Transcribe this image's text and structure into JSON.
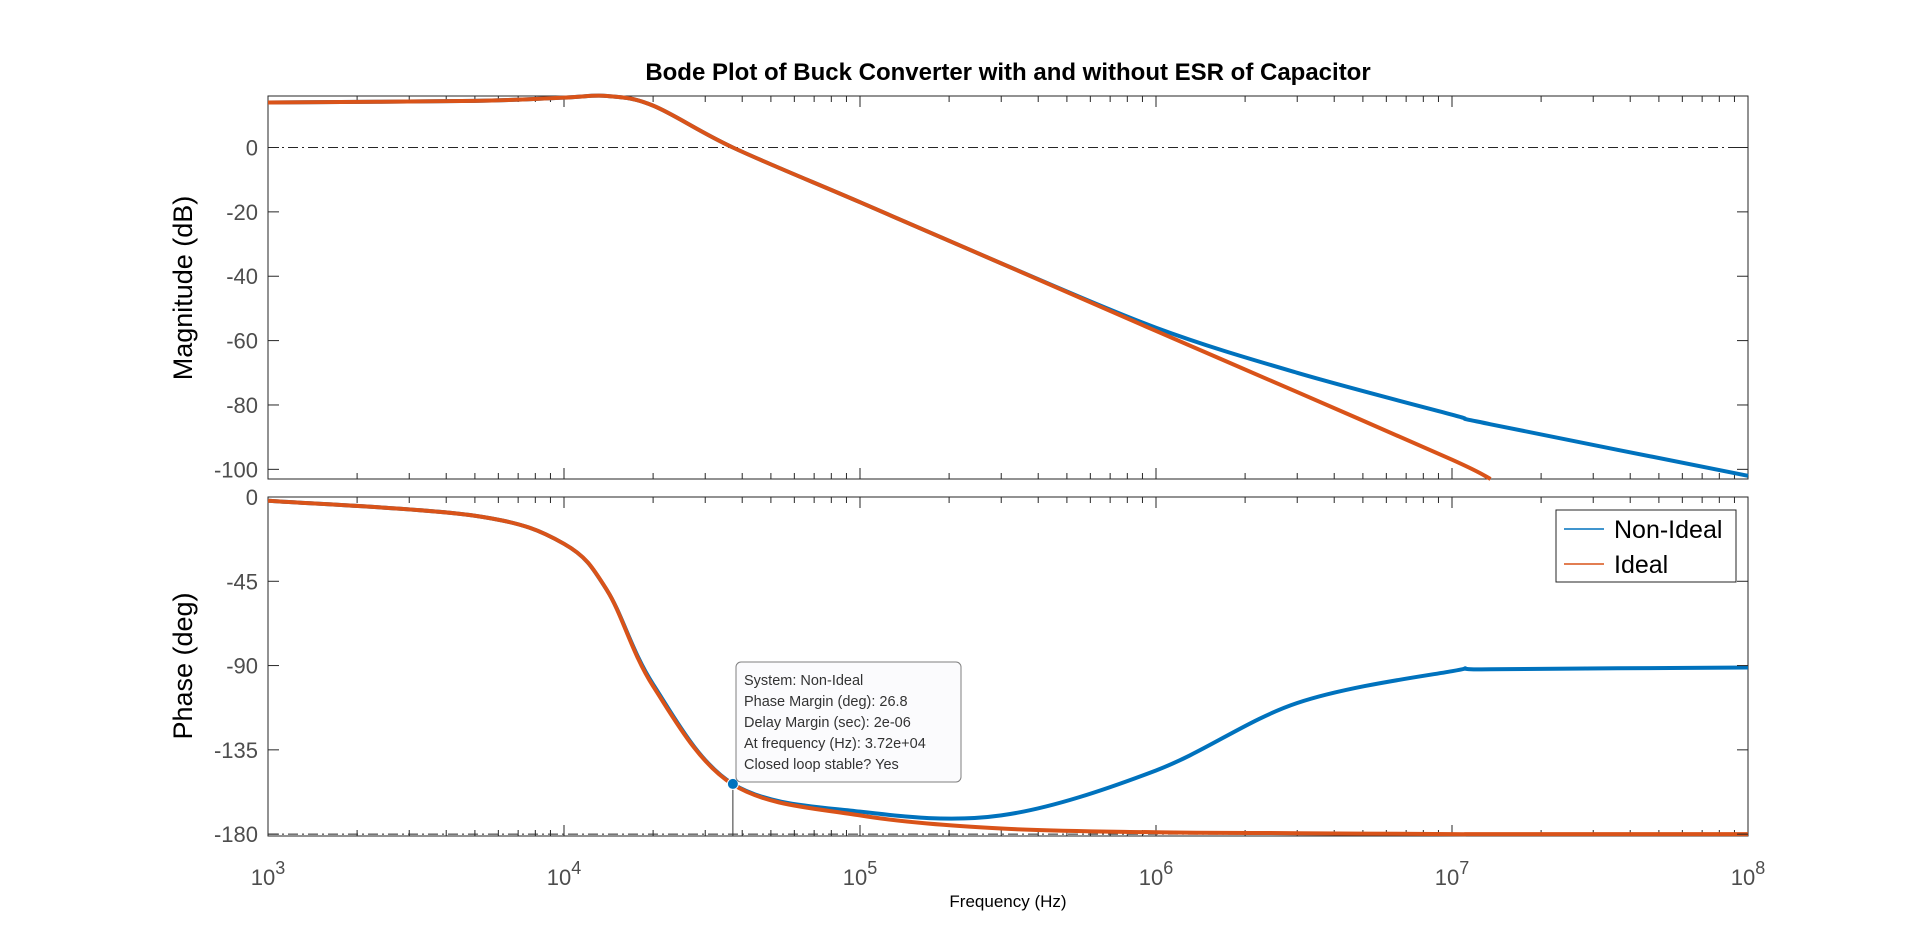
{
  "chart_data": {
    "type": "line",
    "title": "Bode Plot of Buck Converter with and without ESR of Capacitor",
    "xlabel": "Frequency  (Hz)",
    "xscale": "log",
    "xlim": [
      1000,
      100000000
    ],
    "x_ticks": [
      {
        "value": 1000,
        "base": "10",
        "exp": "3"
      },
      {
        "value": 10000,
        "base": "10",
        "exp": "4"
      },
      {
        "value": 100000,
        "base": "10",
        "exp": "5"
      },
      {
        "value": 1000000,
        "base": "10",
        "exp": "6"
      },
      {
        "value": 10000000,
        "base": "10",
        "exp": "7"
      },
      {
        "value": 100000000,
        "base": "10",
        "exp": "8"
      }
    ],
    "legend": {
      "location": "top-right",
      "in_panel": "phase"
    },
    "colors": {
      "Non-Ideal": "#0072bd",
      "Ideal": "#d95319"
    },
    "frequency_hz": [
      1000,
      5000,
      10000,
      14000,
      20000,
      37200,
      100000,
      300000,
      1000000,
      3000000,
      10000000,
      13500000,
      100000000
    ],
    "magnitude": {
      "ylabel": "Magnitude (dB)",
      "ylim": [
        -103,
        16
      ],
      "yticks": [
        "0",
        "-20",
        "-40",
        "-60",
        "-80",
        "-100"
      ],
      "ytick_values": [
        0,
        -20,
        -40,
        -60,
        -80,
        -100
      ],
      "reference_line": 0,
      "series": [
        {
          "name": "Non-Ideal",
          "values": [
            14,
            14.5,
            15.5,
            16,
            13,
            0,
            -17,
            -36,
            -56,
            -70,
            -83,
            -86,
            -102
          ]
        },
        {
          "name": "Ideal",
          "values": [
            14,
            14.5,
            15.5,
            16,
            13,
            0,
            -17,
            -36,
            -57,
            -76,
            -97,
            -103,
            null
          ]
        }
      ]
    },
    "phase": {
      "ylabel": "Phase (deg)",
      "ylim": [
        -181,
        0
      ],
      "yticks": [
        "0",
        "-45",
        "-90",
        "-135",
        "-180"
      ],
      "ytick_values": [
        0,
        -45,
        -90,
        -135,
        -180
      ],
      "reference_line": -180,
      "series": [
        {
          "name": "Non-Ideal",
          "values": [
            -2,
            -10,
            -25,
            -50,
            -100,
            -153.2,
            -168,
            -170,
            -146,
            -110,
            -93,
            -92,
            -91
          ]
        },
        {
          "name": "Ideal",
          "values": [
            -2,
            -10,
            -25,
            -50,
            -101,
            -153.5,
            -170,
            -177,
            -179,
            -179.5,
            -180,
            -180,
            -180
          ]
        }
      ]
    },
    "annotation": {
      "series": "Non-Ideal",
      "frequency": 37200,
      "phase": -153.2,
      "lines": [
        "System: Non-Ideal",
        "Phase Margin (deg): 26.8",
        "Delay Margin (sec): 2e-06",
        "At frequency (Hz): 3.72e+04",
        "Closed loop stable? Yes"
      ]
    }
  }
}
